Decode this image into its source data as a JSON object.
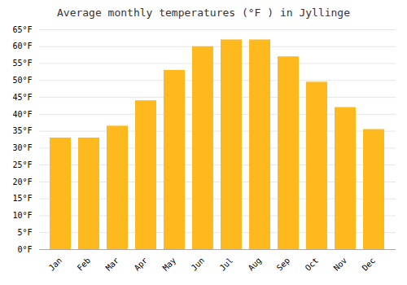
{
  "chart_data": {
    "type": "bar",
    "title": "Average monthly temperatures (°F ) in Jyllinge",
    "categories": [
      "Jan",
      "Feb",
      "Mar",
      "Apr",
      "May",
      "Jun",
      "Jul",
      "Aug",
      "Sep",
      "Oct",
      "Nov",
      "Dec"
    ],
    "values": [
      33,
      33,
      36.5,
      44,
      53,
      60,
      62,
      62,
      57,
      49.5,
      42,
      35.5
    ],
    "color": "#FDB91E",
    "ylim": [
      0,
      65
    ],
    "yticks": [
      {
        "value": 0,
        "label": "0°F"
      },
      {
        "value": 5,
        "label": "5°F"
      },
      {
        "value": 10,
        "label": "10°F"
      },
      {
        "value": 15,
        "label": "15°F"
      },
      {
        "value": 20,
        "label": "20°F"
      },
      {
        "value": 25,
        "label": "25°F"
      },
      {
        "value": 30,
        "label": "30°F"
      },
      {
        "value": 35,
        "label": "35°F"
      },
      {
        "value": 40,
        "label": "40°F"
      },
      {
        "value": 45,
        "label": "45°F"
      },
      {
        "value": 50,
        "label": "50°F"
      },
      {
        "value": 55,
        "label": "55°F"
      },
      {
        "value": 60,
        "label": "60°F"
      },
      {
        "value": 65,
        "label": "65°F"
      }
    ],
    "grid": true
  }
}
